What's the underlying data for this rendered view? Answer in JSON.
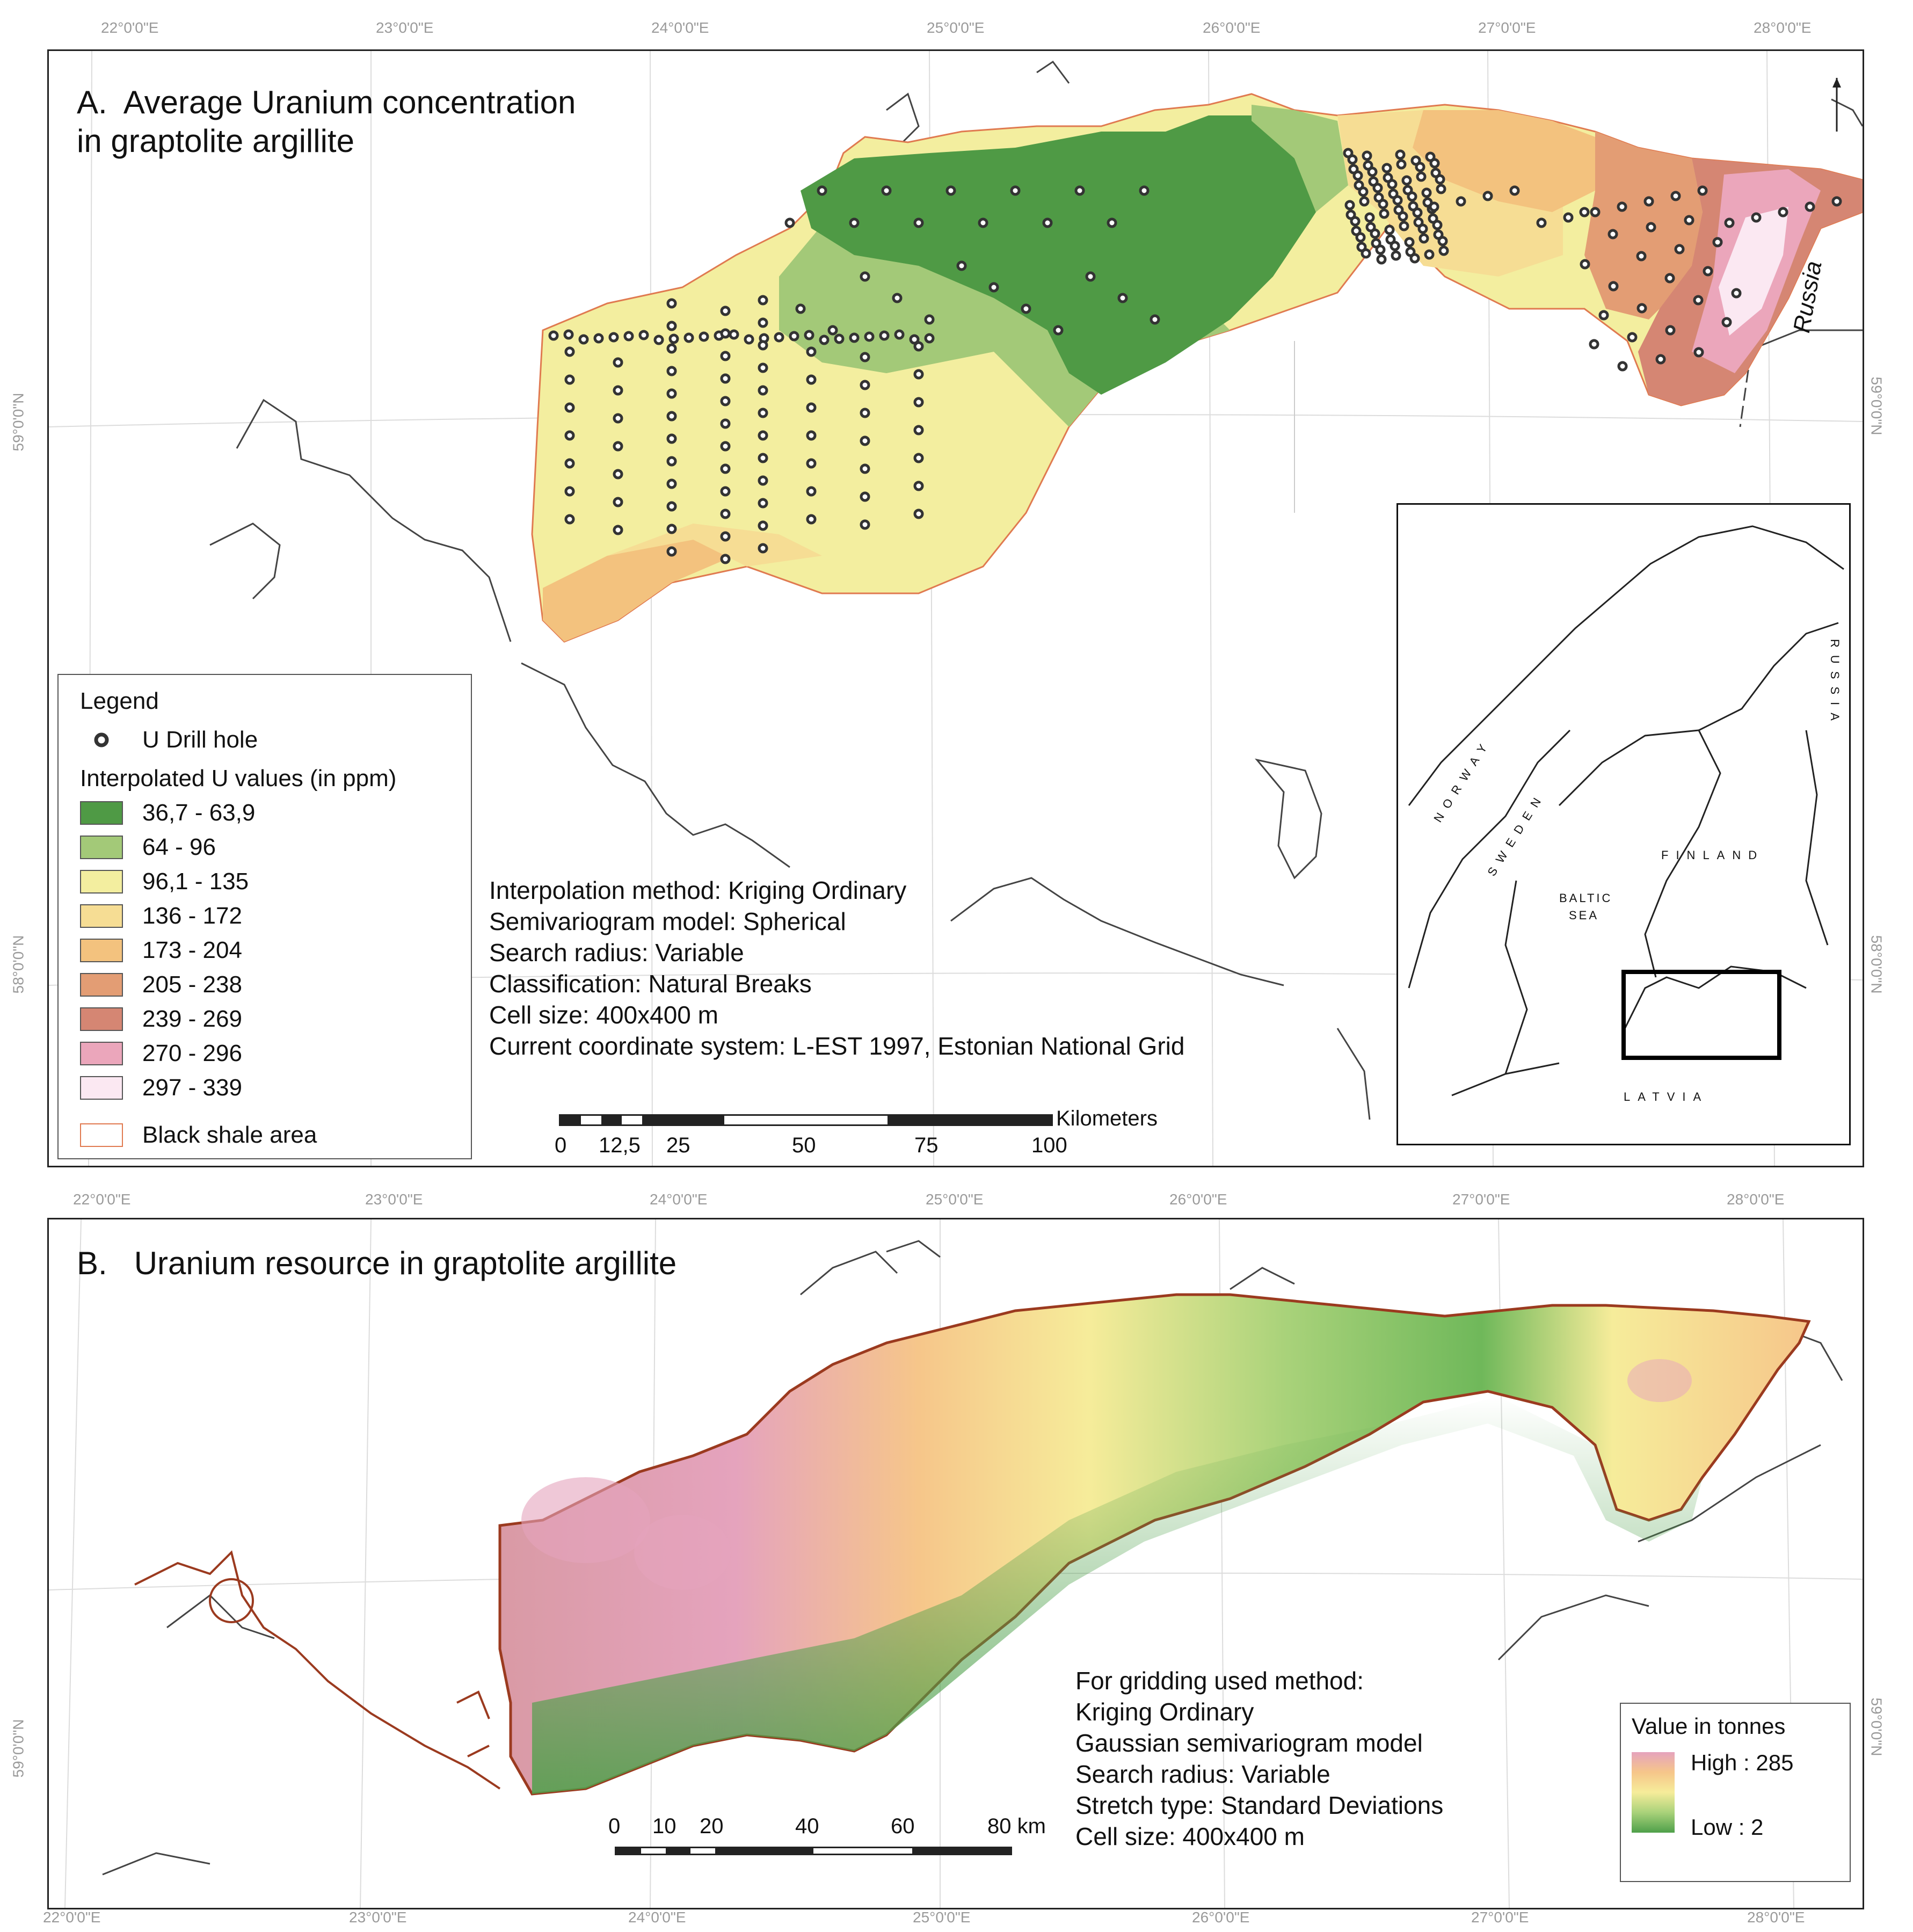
{
  "graticule": {
    "longitudes": [
      "22°0'0\"E",
      "23°0'0\"E",
      "24°0'0\"E",
      "25°0'0\"E",
      "26°0'0\"E",
      "27°0'0\"E",
      "28°0'0\"E"
    ],
    "latitude_a": [
      "59°0'0\"N",
      "58°0'0\"N"
    ],
    "latitude_b": [
      "59°0'0\"N"
    ]
  },
  "panel_a": {
    "title_line1": "A.  Average Uranium concentration",
    "title_line2": "in graptolite argillite",
    "legend": {
      "title": "Legend",
      "drill_hole": "U Drill hole",
      "interpolated_title": "Interpolated U values (in ppm)",
      "classes": [
        {
          "label": "36,7 - 63,9",
          "color": "#4f9a45"
        },
        {
          "label": "64 - 96",
          "color": "#a3c978"
        },
        {
          "label": "96,1 - 135",
          "color": "#f3ee9f"
        },
        {
          "label": "136 - 172",
          "color": "#f6dd94"
        },
        {
          "label": "173 - 204",
          "color": "#f3c27e"
        },
        {
          "label": "205 - 238",
          "color": "#e39d74"
        },
        {
          "label": "239 - 269",
          "color": "#d58673"
        },
        {
          "label": "270 - 296",
          "color": "#eba6bb"
        },
        {
          "label": "297 - 339",
          "color": "#fbe8f2"
        }
      ],
      "black_shale": "Black shale area",
      "black_shale_color": "#e07a50"
    },
    "method_notes": [
      "Interpolation method: Kriging Ordinary",
      "Semivariogram model: Spherical",
      "Search radius: Variable",
      "Classification: Natural Breaks",
      "Cell size: 400x400 m",
      "Current coordinate system: L-EST 1997, Estonian National Grid"
    ],
    "scalebar": {
      "unit": "Kilometers",
      "ticks": [
        "0",
        "12,5",
        "25",
        "50",
        "75",
        "100"
      ]
    },
    "russia_label": "Russia",
    "inset": {
      "countries": [
        "NORWAY",
        "SWEDEN",
        "FINLAND",
        "RUSSIA",
        "LATVIA"
      ],
      "sea_line1": "BALTIC",
      "sea_line2": "SEA"
    }
  },
  "panel_b": {
    "title": "B.   Uranium resource in graptolite argillite",
    "method_notes": [
      "For gridding used method:",
      "Kriging Ordinary",
      "Gaussian semivariogram model",
      "Search radius: Variable",
      "Stretch type: Standard Deviations",
      "Cell size: 400x400 m"
    ],
    "scalebar": {
      "ticks": [
        "0",
        "10",
        "20",
        "40",
        "60",
        "80"
      ],
      "unit": "km"
    },
    "ramp_legend": {
      "title": "Value in tonnes",
      "high": "High : 285",
      "low": "Low : 2",
      "colors": [
        "#e5a3bd",
        "#f6c68a",
        "#f6ec9a",
        "#a9d27a",
        "#4ea04a"
      ]
    },
    "outline_color": "#9b3a1f"
  }
}
